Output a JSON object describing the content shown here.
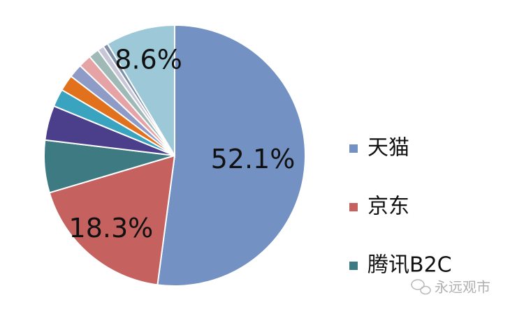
{
  "chart_data": {
    "type": "pie",
    "categories": [
      "天猫",
      "京东",
      "腾讯B2C",
      null,
      null,
      null,
      null,
      null,
      null,
      null,
      null,
      null
    ],
    "values": [
      52.1,
      18.3,
      6.5,
      4.3,
      2.2,
      2.0,
      1.7,
      1.6,
      1.3,
      0.8,
      0.6,
      8.6
    ],
    "value_labels": [
      "52.1%",
      "18.3%",
      null,
      null,
      null,
      null,
      null,
      null,
      null,
      null,
      null,
      "8.6%"
    ],
    "colors": [
      "#7391c3",
      "#c5625f",
      "#3d7a82",
      "#4b3f8c",
      "#3aa3bf",
      "#e2711d",
      "#8e9bc7",
      "#e5a3a5",
      "#9fbab6",
      "#c6c6d8",
      "#7e8fa8",
      "#9cc8d8"
    ],
    "legend_position": "right"
  },
  "watermark": "永远观市"
}
